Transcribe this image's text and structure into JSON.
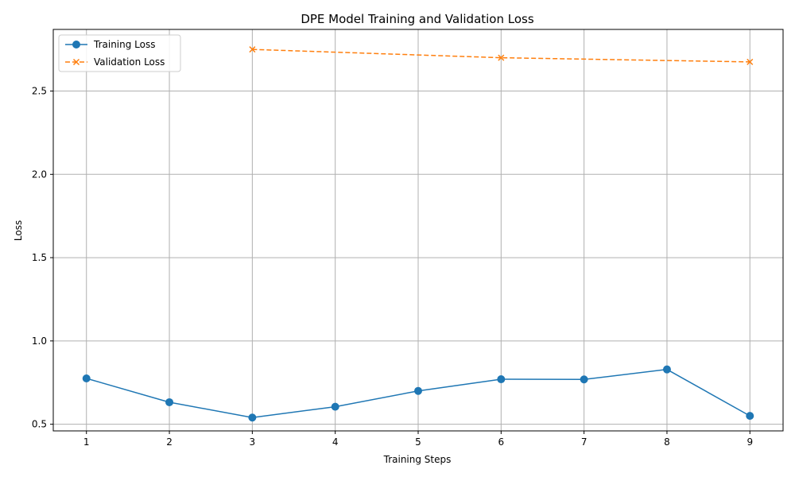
{
  "chart_data": {
    "type": "line",
    "title": "DPE Model Training and Validation Loss",
    "xlabel": "Training Steps",
    "ylabel": "Loss",
    "xlim": [
      0.6,
      9.4
    ],
    "ylim": [
      0.46,
      2.87
    ],
    "xticks": [
      1,
      2,
      3,
      4,
      5,
      6,
      7,
      8,
      9
    ],
    "yticks": [
      0.5,
      1.0,
      1.5,
      2.0,
      2.5
    ],
    "ytick_labels": [
      "0.5",
      "1.0",
      "1.5",
      "2.0",
      "2.5"
    ],
    "grid": true,
    "legend_position": "top-left",
    "series": [
      {
        "name": "Training Loss",
        "color": "#1f77b4",
        "marker": "circle",
        "linestyle": "solid",
        "x": [
          1,
          2,
          3,
          4,
          5,
          6,
          7,
          8,
          9
        ],
        "y": [
          0.775,
          0.632,
          0.54,
          0.605,
          0.7,
          0.77,
          0.769,
          0.829,
          0.55
        ]
      },
      {
        "name": "Validation Loss",
        "color": "#ff7f0e",
        "marker": "x",
        "linestyle": "dashed",
        "x": [
          3,
          6,
          9
        ],
        "y": [
          2.75,
          2.7,
          2.675
        ]
      }
    ]
  }
}
